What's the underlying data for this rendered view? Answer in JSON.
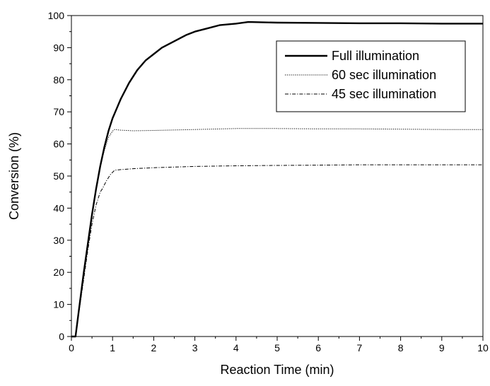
{
  "chart_data": {
    "type": "line",
    "title": "",
    "xlabel": "Reaction Time (min)",
    "ylabel": "Conversion (%)",
    "xlim": [
      0,
      10
    ],
    "ylim": [
      0,
      100
    ],
    "x_ticks": [
      0,
      1,
      2,
      3,
      4,
      5,
      6,
      7,
      8,
      9,
      10
    ],
    "y_ticks": [
      0,
      10,
      20,
      30,
      40,
      50,
      60,
      70,
      80,
      90,
      100
    ],
    "grid": false,
    "legend_position": "top-right",
    "series": [
      {
        "name": "Full illumination",
        "style": "solid",
        "color": "#000000",
        "x": [
          0,
          0.1,
          0.2,
          0.3,
          0.4,
          0.5,
          0.6,
          0.7,
          0.8,
          0.9,
          1.0,
          1.1,
          1.2,
          1.4,
          1.6,
          1.8,
          2.0,
          2.2,
          2.5,
          2.8,
          3.0,
          3.3,
          3.6,
          4.0,
          4.3,
          5.0,
          6.0,
          7.0,
          8.0,
          9.0,
          10.0
        ],
        "y": [
          0,
          0,
          10,
          20,
          29,
          38,
          46,
          53,
          59,
          64,
          68,
          71,
          74,
          79,
          83,
          86,
          88,
          90,
          92,
          94,
          95,
          96,
          97,
          97.5,
          98,
          97.8,
          97.7,
          97.6,
          97.6,
          97.5,
          97.5
        ]
      },
      {
        "name": "60 sec illumination",
        "style": "dotted",
        "color": "#000000",
        "x": [
          0,
          0.1,
          0.2,
          0.3,
          0.4,
          0.5,
          0.6,
          0.7,
          0.8,
          0.9,
          1.0,
          1.05,
          1.2,
          1.5,
          2.0,
          3.0,
          4.0,
          5.0,
          6.0,
          7.0,
          8.0,
          9.0,
          10.0
        ],
        "y": [
          0,
          0,
          10,
          20,
          29,
          38,
          46,
          53,
          58,
          62,
          64,
          64.5,
          64.3,
          64.1,
          64.2,
          64.5,
          64.8,
          64.8,
          64.7,
          64.7,
          64.6,
          64.5,
          64.5
        ]
      },
      {
        "name": "45 sec illumination",
        "style": "dashdot",
        "color": "#000000",
        "x": [
          0,
          0.1,
          0.2,
          0.3,
          0.4,
          0.5,
          0.6,
          0.7,
          0.75,
          0.85,
          0.95,
          1.05,
          1.2,
          1.5,
          2.0,
          3.0,
          4.0,
          5.0,
          6.0,
          7.0,
          8.0,
          9.0,
          10.0
        ],
        "y": [
          0,
          0,
          9,
          18,
          27,
          35,
          41,
          45,
          46,
          48.5,
          50.5,
          51.8,
          52,
          52.3,
          52.6,
          53,
          53.2,
          53.3,
          53.4,
          53.5,
          53.5,
          53.5,
          53.5
        ]
      }
    ]
  }
}
